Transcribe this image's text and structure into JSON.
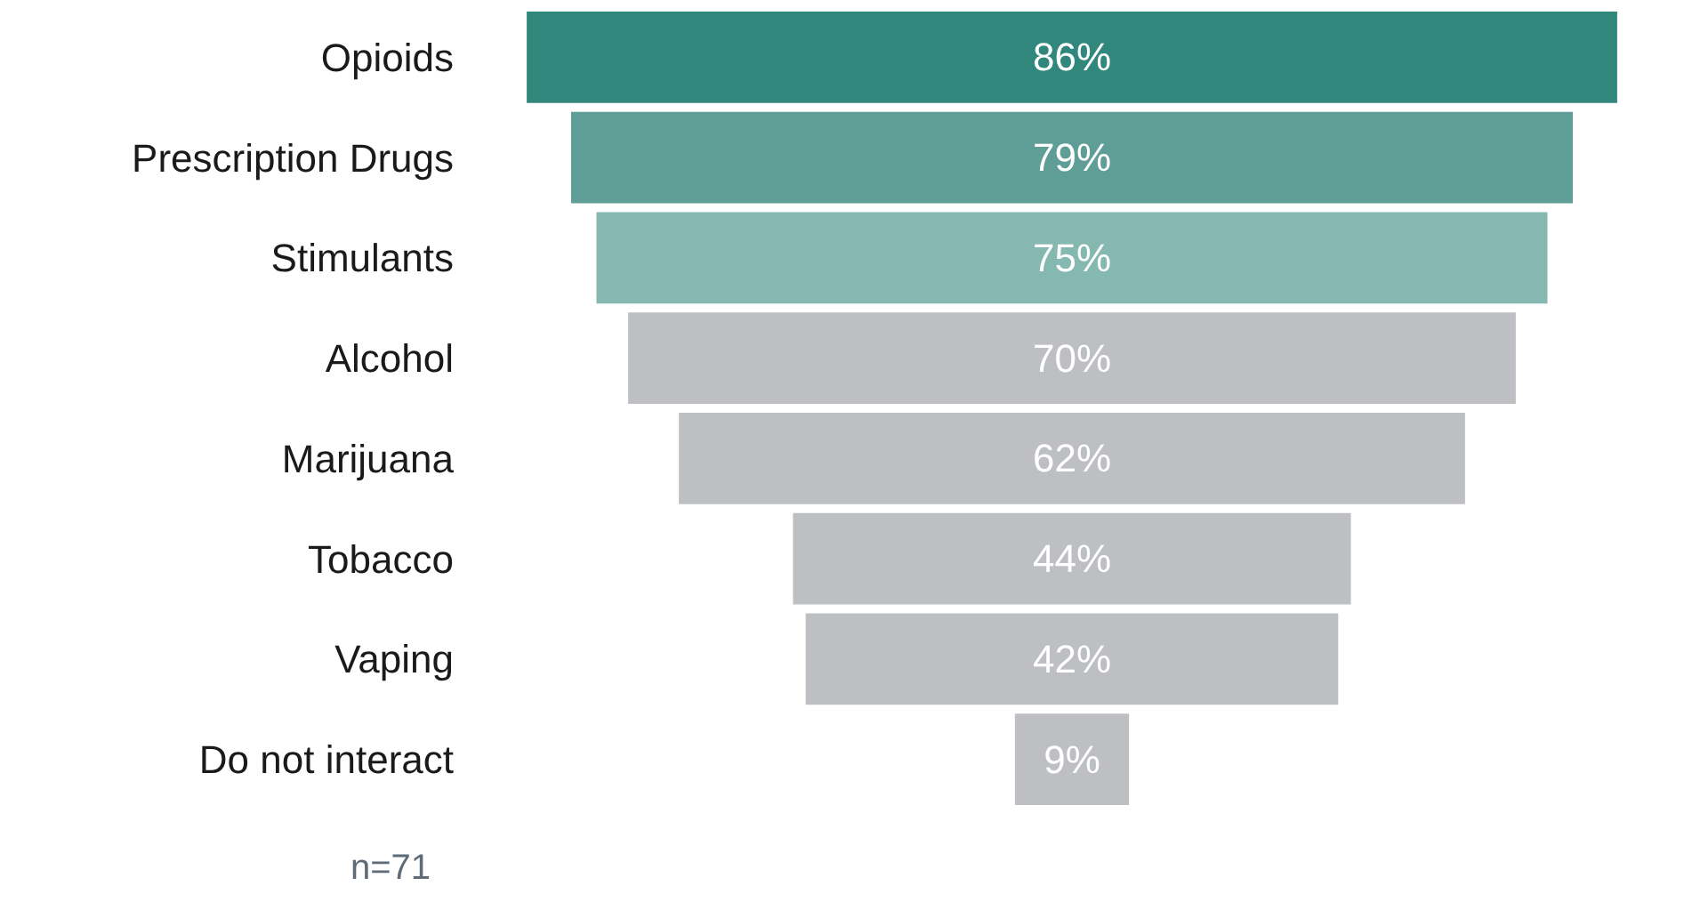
{
  "chart_data": {
    "type": "other",
    "categories": [
      "Opioids",
      "Prescription Drugs",
      "Stimulants",
      "Alcohol",
      "Marijuana",
      "Tobacco",
      "Vaping",
      "Do not interact"
    ],
    "values": [
      86,
      79,
      75,
      70,
      62,
      44,
      42,
      9
    ],
    "value_labels": [
      "86%",
      "79%",
      "75%",
      "70%",
      "62%",
      "44%",
      "42%",
      "9%"
    ],
    "colors": [
      "#32877d",
      "#5e9e97",
      "#86b8b2",
      "#bebfc3",
      "#bebfc3",
      "#bebfc3",
      "#bebfc3",
      "#bebfc3"
    ],
    "annotations": [
      "n=71"
    ]
  }
}
